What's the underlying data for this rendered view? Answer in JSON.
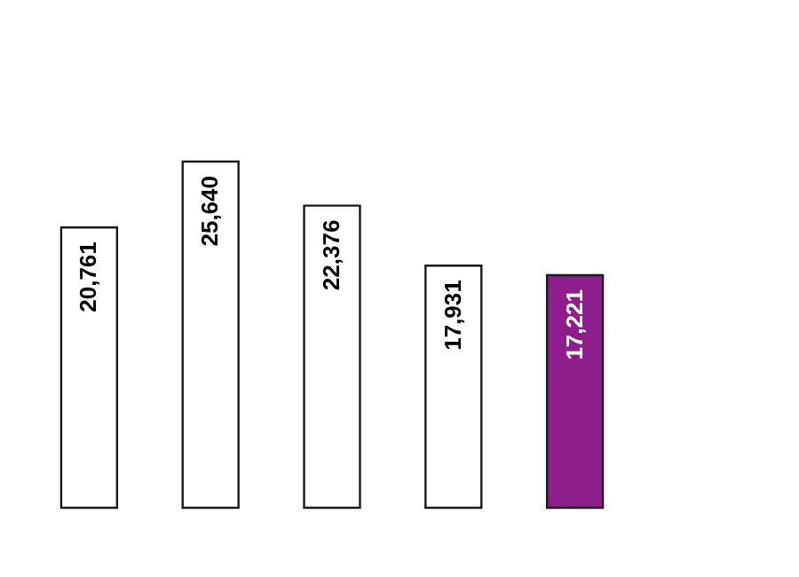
{
  "chart_data": {
    "type": "bar",
    "categories": [
      null,
      null,
      null,
      null,
      null
    ],
    "values": [
      20761,
      25640,
      22376,
      17931,
      17221
    ],
    "colors": [
      "#ffffff",
      "#ffffff",
      "#ffffff",
      "#ffffff",
      "#8e1e8c"
    ],
    "value_labels": [
      "20,761",
      "25,640",
      "22,376",
      "17,931",
      "17,221"
    ]
  }
}
